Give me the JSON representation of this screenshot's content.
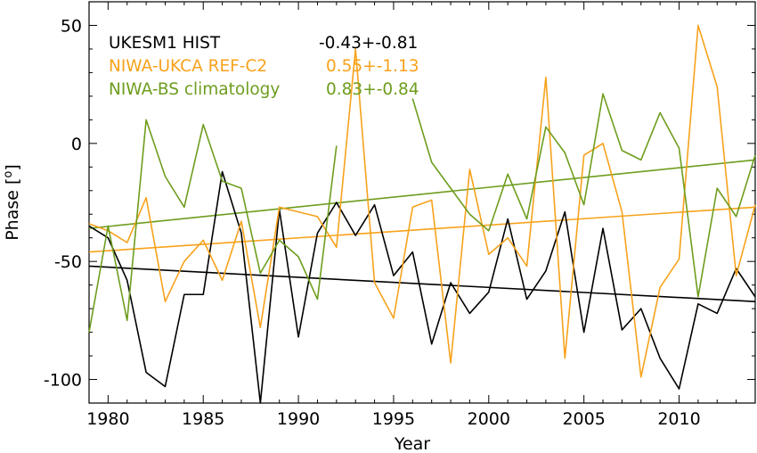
{
  "chart_data": {
    "type": "line",
    "xlabel": "Year",
    "ylabel": "Phase [°]",
    "ylabel_main": "Phase [",
    "ylabel_unit": "o",
    "ylabel_close": "]",
    "xlim": [
      1979,
      2014
    ],
    "ylim": [
      -110,
      60
    ],
    "xticks": [
      1980,
      1985,
      1990,
      1995,
      2000,
      2005,
      2010
    ],
    "yticks": [
      50,
      0,
      -50,
      -100
    ],
    "xtick_labels": [
      "1980",
      "1985",
      "1990",
      "1995",
      "2000",
      "2005",
      "2010"
    ],
    "ytick_labels": [
      "50",
      "0",
      "-50",
      "-100"
    ],
    "grid": false,
    "legend_placement": "top-left",
    "series": [
      {
        "name": "UKESM1 HIST",
        "color": "#000000",
        "trend_label": "-0.43+-0.81",
        "trend_line": [
          [
            1979,
            -52
          ],
          [
            2014,
            -67
          ]
        ],
        "points": [
          [
            1979,
            -35
          ],
          [
            1980,
            -40
          ],
          [
            1981,
            -58
          ],
          [
            1982,
            -97
          ],
          [
            1983,
            -103
          ],
          [
            1984,
            -64
          ],
          [
            1985,
            -64
          ],
          [
            1986,
            -12
          ],
          [
            1987,
            -38
          ],
          [
            1988,
            -110
          ],
          [
            1989,
            -28
          ],
          [
            1990,
            -82
          ],
          [
            1991,
            -38
          ],
          [
            1992,
            -25
          ],
          [
            1993,
            -39
          ],
          [
            1994,
            -26
          ],
          [
            1995,
            -56
          ],
          [
            1996,
            -46
          ],
          [
            1997,
            -85
          ],
          [
            1998,
            -59
          ],
          [
            1999,
            -72
          ],
          [
            2000,
            -63
          ],
          [
            2001,
            -32
          ],
          [
            2002,
            -66
          ],
          [
            2003,
            -54
          ],
          [
            2004,
            -29
          ],
          [
            2005,
            -80
          ],
          [
            2006,
            -36
          ],
          [
            2007,
            -79
          ],
          [
            2008,
            -70
          ],
          [
            2009,
            -91
          ],
          [
            2010,
            -104
          ],
          [
            2011,
            -68
          ],
          [
            2012,
            -72
          ],
          [
            2013,
            -53
          ],
          [
            2014,
            -65
          ]
        ]
      },
      {
        "name": "NIWA-UKCA REF-C2",
        "color": "#f7a21b",
        "trend_label": "0.55+-1.13",
        "trend_line": [
          [
            1979,
            -46
          ],
          [
            2014,
            -27
          ]
        ],
        "points": [
          [
            1979,
            -34
          ],
          [
            1980,
            -37
          ],
          [
            1981,
            -42
          ],
          [
            1982,
            -23
          ],
          [
            1983,
            -67
          ],
          [
            1984,
            -50
          ],
          [
            1985,
            -41
          ],
          [
            1986,
            -58
          ],
          [
            1987,
            -33
          ],
          [
            1988,
            -78
          ],
          [
            1989,
            -27
          ],
          [
            1990,
            -29
          ],
          [
            1991,
            -31
          ],
          [
            1992,
            -44
          ],
          [
            1993,
            40
          ],
          [
            1994,
            -59
          ],
          [
            1995,
            -74
          ],
          [
            1996,
            -27
          ],
          [
            1997,
            -24
          ],
          [
            1998,
            -93
          ],
          [
            1999,
            -11
          ],
          [
            2000,
            -47
          ],
          [
            2001,
            -40
          ],
          [
            2002,
            -52
          ],
          [
            2003,
            28
          ],
          [
            2004,
            -91
          ],
          [
            2005,
            -5
          ],
          [
            2006,
            0
          ],
          [
            2007,
            -29
          ],
          [
            2008,
            -99
          ],
          [
            2009,
            -61
          ],
          [
            2010,
            -49
          ],
          [
            2011,
            50
          ],
          [
            2012,
            24
          ],
          [
            2013,
            -56
          ],
          [
            2014,
            -26
          ]
        ]
      },
      {
        "name": "NIWA-BS climatology",
        "color": "#6e9d1e",
        "trend_label": "0.83+-0.84",
        "trend_line": [
          [
            1979,
            -36
          ],
          [
            2014,
            -7
          ]
        ],
        "segments": [
          [
            [
              1979,
              -80
            ],
            [
              1980,
              -35
            ],
            [
              1981,
              -75
            ],
            [
              1982,
              10
            ],
            [
              1983,
              -14
            ],
            [
              1984,
              -27
            ],
            [
              1985,
              8
            ],
            [
              1986,
              -16
            ],
            [
              1987,
              -19
            ],
            [
              1988,
              -55
            ],
            [
              1989,
              -41
            ],
            [
              1990,
              -48
            ],
            [
              1991,
              -66
            ],
            [
              1992,
              -1
            ]
          ],
          [
            [
              1996,
              19
            ],
            [
              1997,
              -8
            ],
            [
              1998,
              -19
            ],
            [
              1999,
              -30
            ],
            [
              2000,
              -37
            ],
            [
              2001,
              -13
            ],
            [
              2002,
              -32
            ],
            [
              2003,
              7
            ],
            [
              2004,
              -4
            ],
            [
              2005,
              -26
            ],
            [
              2006,
              21
            ],
            [
              2007,
              -3
            ],
            [
              2008,
              -7
            ],
            [
              2009,
              13
            ],
            [
              2010,
              -2
            ],
            [
              2011,
              -65
            ],
            [
              2012,
              -19
            ],
            [
              2013,
              -31
            ],
            [
              2014,
              -5
            ]
          ]
        ]
      }
    ]
  }
}
